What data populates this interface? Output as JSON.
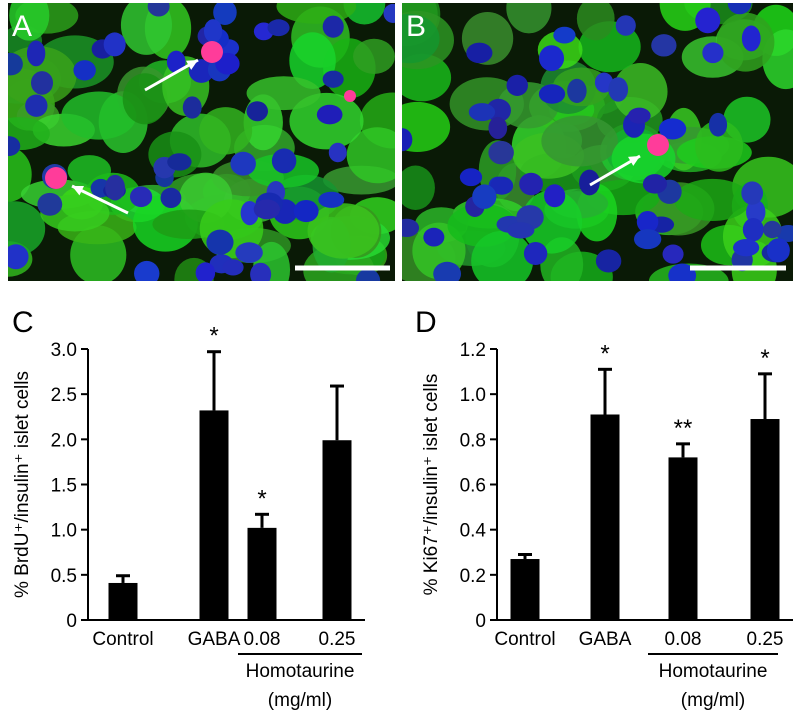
{
  "images": [
    {
      "label": "A"
    },
    {
      "label": "B"
    }
  ],
  "chart_data": [
    {
      "type": "bar",
      "panel_label": "C",
      "ylabel": "% BrdU⁺/insulin⁺ islet cells",
      "categories": [
        "Control",
        "GABA",
        "0.08",
        "0.25"
      ],
      "values": [
        0.41,
        2.32,
        1.02,
        1.99
      ],
      "errors": [
        0.08,
        0.65,
        0.15,
        0.6
      ],
      "annotations": [
        null,
        "*",
        "*",
        null
      ],
      "group_label": "Homotaurine",
      "group_unit": "(mg/ml)",
      "color": "#000000",
      "ylim": [
        0,
        3.0
      ],
      "yticks": [
        0,
        0.5,
        {
          "value": 1,
          "label": "1.0"
        },
        1.5,
        {
          "value": 2,
          "label": "2.0"
        },
        2.5,
        {
          "value": 3,
          "label": "3.0"
        }
      ]
    },
    {
      "type": "bar",
      "panel_label": "D",
      "ylabel": "% Ki67⁺/insulin⁺ islet cells",
      "categories": [
        "Control",
        "GABA",
        "0.08",
        "0.25"
      ],
      "values": [
        0.27,
        0.91,
        0.72,
        0.89
      ],
      "errors": [
        0.02,
        0.2,
        0.06,
        0.2
      ],
      "annotations": [
        null,
        "*",
        "**",
        "*"
      ],
      "group_label": "Homotaurine",
      "group_unit": "(mg/ml)",
      "color": "#000000",
      "ylim": [
        0,
        1.2
      ],
      "yticks": [
        0,
        0.2,
        0.4,
        0.6,
        0.8,
        {
          "value": 1,
          "label": "1.0"
        },
        1.2
      ]
    }
  ]
}
